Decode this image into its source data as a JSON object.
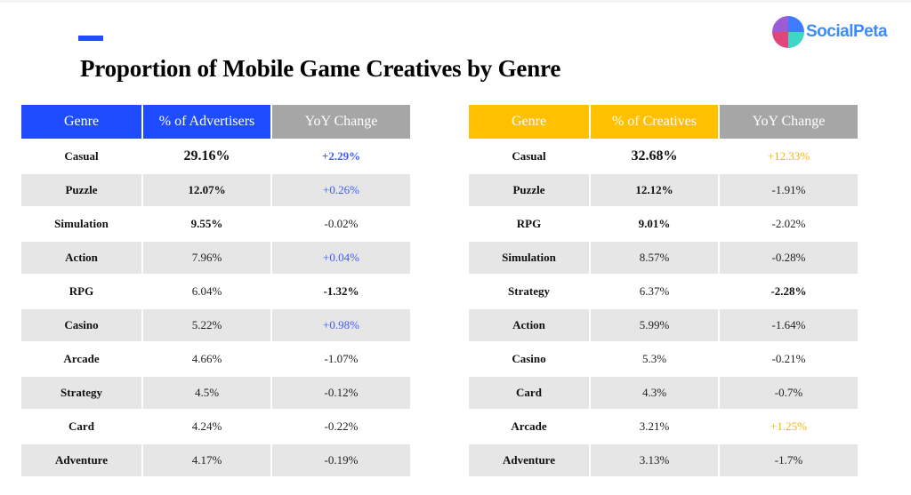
{
  "title": "Proportion of Mobile Game Creatives by Genre",
  "logo": {
    "text": "SocialPeta"
  },
  "colors": {
    "blue": "#1f4cff",
    "yellow": "#ffc000",
    "gray": "#a6a6a6",
    "row_alt": "#e6e6e6"
  },
  "left_table": {
    "headers": [
      "Genre",
      "% of Advertisers",
      "YoY Change"
    ],
    "rows": [
      {
        "genre": "Casual",
        "value": "29.16%",
        "yoy": "+2.29%"
      },
      {
        "genre": "Puzzle",
        "value": "12.07%",
        "yoy": "+0.26%"
      },
      {
        "genre": "Simulation",
        "value": "9.55%",
        "yoy": "-0.02%"
      },
      {
        "genre": "Action",
        "value": "7.96%",
        "yoy": "+0.04%"
      },
      {
        "genre": "RPG",
        "value": "6.04%",
        "yoy": "-1.32%"
      },
      {
        "genre": "Casino",
        "value": "5.22%",
        "yoy": "+0.98%"
      },
      {
        "genre": "Arcade",
        "value": "4.66%",
        "yoy": "-1.07%"
      },
      {
        "genre": "Strategy",
        "value": "4.5%",
        "yoy": "-0.12%"
      },
      {
        "genre": "Card",
        "value": "4.24%",
        "yoy": "-0.22%"
      },
      {
        "genre": "Adventure",
        "value": "4.17%",
        "yoy": "-0.19%"
      }
    ]
  },
  "right_table": {
    "headers": [
      "Genre",
      "% of Creatives",
      "YoY Change"
    ],
    "rows": [
      {
        "genre": "Casual",
        "value": "32.68%",
        "yoy": "+12.33%"
      },
      {
        "genre": "Puzzle",
        "value": "12.12%",
        "yoy": "-1.91%"
      },
      {
        "genre": "RPG",
        "value": "9.01%",
        "yoy": "-2.02%"
      },
      {
        "genre": "Simulation",
        "value": "8.57%",
        "yoy": "-0.28%"
      },
      {
        "genre": "Strategy",
        "value": "6.37%",
        "yoy": "-2.28%"
      },
      {
        "genre": "Action",
        "value": "5.99%",
        "yoy": "-1.64%"
      },
      {
        "genre": "Casino",
        "value": "5.3%",
        "yoy": "-0.21%"
      },
      {
        "genre": "Card",
        "value": "4.3%",
        "yoy": "-0.7%"
      },
      {
        "genre": "Arcade",
        "value": "3.21%",
        "yoy": "+1.25%"
      },
      {
        "genre": "Adventure",
        "value": "3.13%",
        "yoy": "-1.7%"
      }
    ]
  }
}
